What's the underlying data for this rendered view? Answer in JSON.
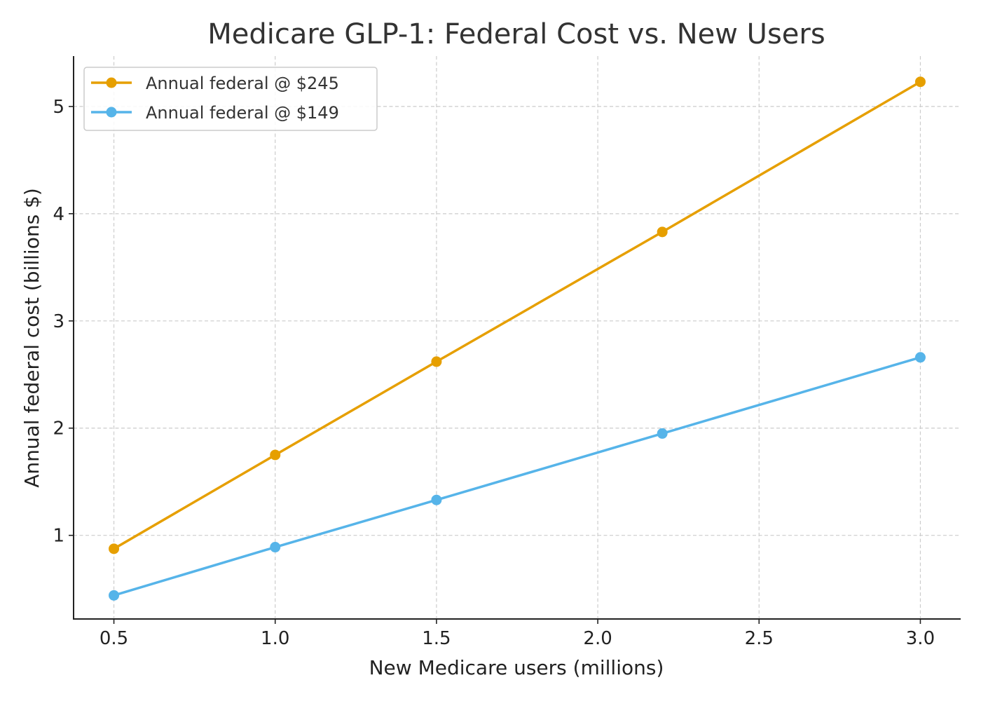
{
  "chart_data": {
    "type": "line",
    "title": "Medicare GLP-1: Federal Cost vs. New Users",
    "xlabel": "New Medicare users (millions)",
    "ylabel": "Annual federal cost (billions $)",
    "x": [
      0.5,
      1.0,
      1.5,
      2.2,
      3.0
    ],
    "xticks": [
      0.5,
      1.0,
      1.5,
      2.0,
      2.5,
      3.0
    ],
    "xtick_labels": [
      "0.5",
      "1.0",
      "1.5",
      "2.0",
      "2.5",
      "3.0"
    ],
    "yticks": [
      1,
      2,
      3,
      4,
      5
    ],
    "ytick_labels": [
      "1",
      "2",
      "3",
      "4",
      "5"
    ],
    "xlim": [
      0.375,
      3.125
    ],
    "ylim": [
      0.22,
      5.47
    ],
    "grid": true,
    "legend_position": "top-left",
    "series": [
      {
        "name": "Annual federal @ $245",
        "color": "#E69F00",
        "values": [
          0.875,
          1.75,
          2.62,
          3.83,
          5.23
        ]
      },
      {
        "name": "Annual federal @ $149",
        "color": "#56B4E9",
        "values": [
          0.44,
          0.89,
          1.33,
          1.95,
          2.66
        ]
      }
    ]
  }
}
